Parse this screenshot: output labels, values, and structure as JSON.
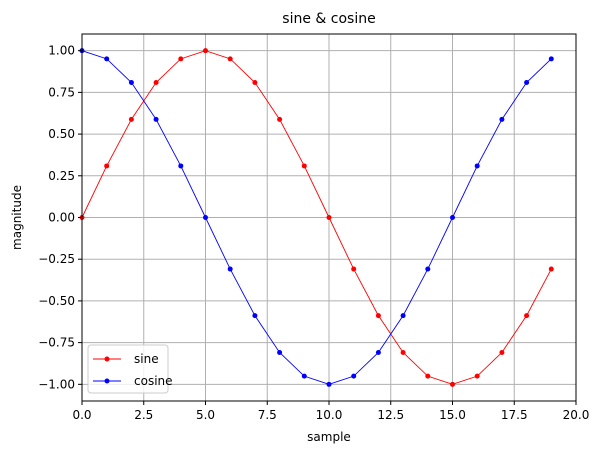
{
  "chart_data": {
    "type": "line",
    "title": "sine & cosine",
    "xlabel": "sample",
    "ylabel": "magnitude",
    "xlim": [
      0,
      20
    ],
    "ylim": [
      -1.1,
      1.1
    ],
    "grid": true,
    "legend_position": "lower-left",
    "x_ticks": [
      "0.0",
      "2.5",
      "5.0",
      "7.5",
      "10.0",
      "12.5",
      "15.0",
      "17.5",
      "20.0"
    ],
    "y_ticks": [
      "1.00",
      "0.75",
      "0.50",
      "0.25",
      "0.00",
      "−0.25",
      "−0.50",
      "−0.75",
      "−1.00"
    ],
    "x": [
      0,
      1,
      2,
      3,
      4,
      5,
      6,
      7,
      8,
      9,
      10,
      11,
      12,
      13,
      14,
      15,
      16,
      17,
      18,
      19
    ],
    "series": [
      {
        "name": "sine",
        "color": "#ff0000",
        "values": [
          0.0,
          0.309,
          0.588,
          0.809,
          0.951,
          1.0,
          0.951,
          0.809,
          0.588,
          0.309,
          0.0,
          -0.309,
          -0.588,
          -0.809,
          -0.951,
          -1.0,
          -0.951,
          -0.809,
          -0.588,
          -0.309
        ]
      },
      {
        "name": "cosine",
        "color": "#0000ff",
        "values": [
          1.0,
          0.951,
          0.809,
          0.588,
          0.309,
          0.0,
          -0.309,
          -0.588,
          -0.809,
          -0.951,
          -1.0,
          -0.951,
          -0.809,
          -0.588,
          -0.309,
          0.0,
          0.309,
          0.588,
          0.809,
          0.951
        ]
      }
    ]
  }
}
